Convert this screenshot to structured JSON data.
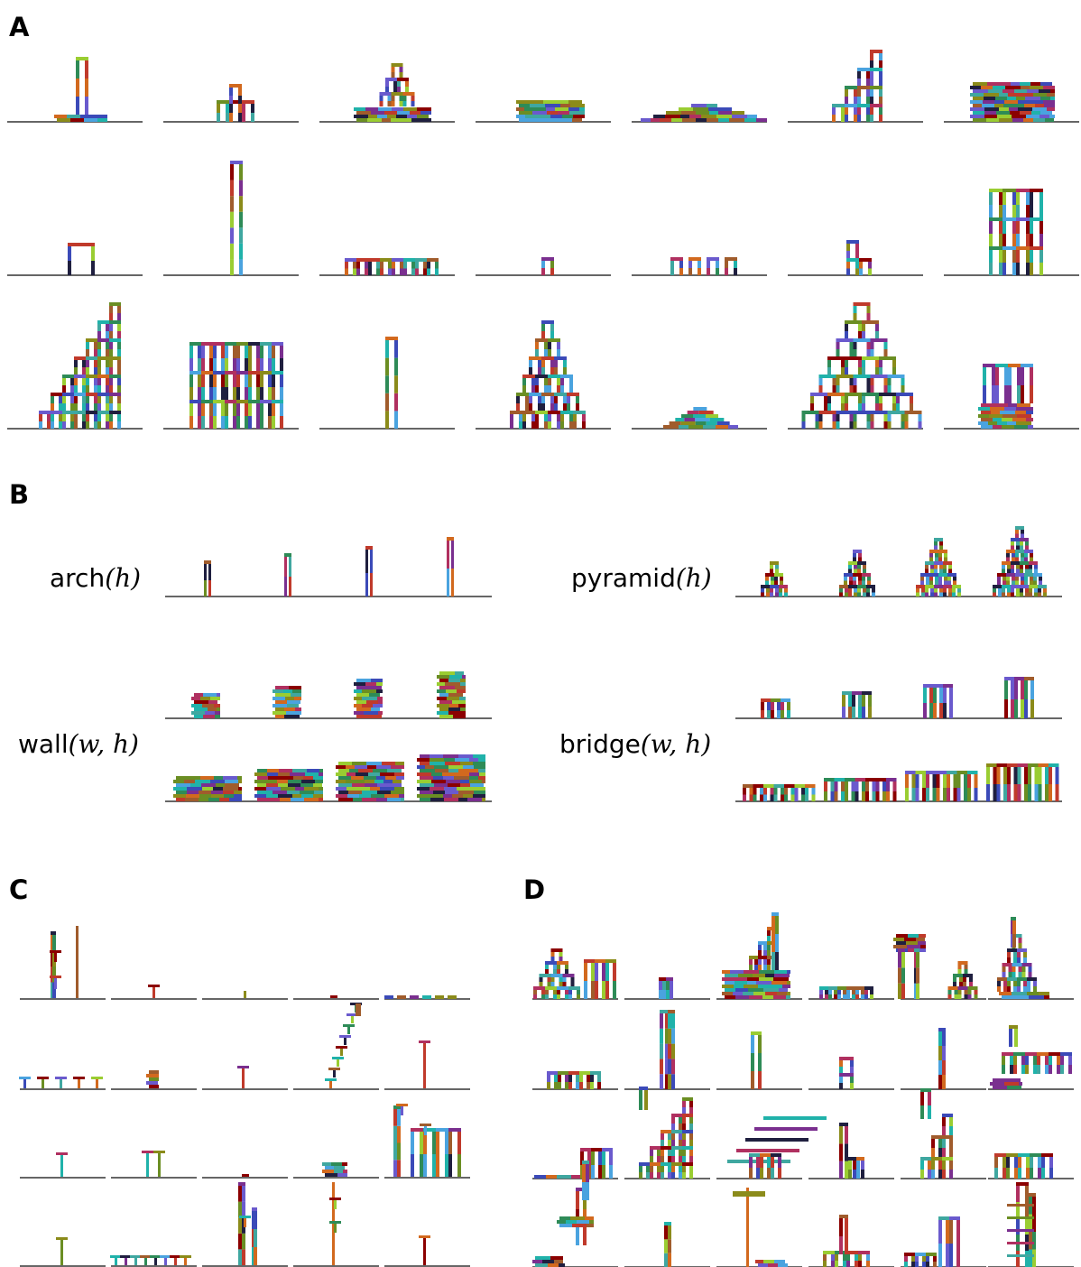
{
  "panels": {
    "a": {
      "letter": "A"
    },
    "b": {
      "letter": "B",
      "arch": {
        "name": "arch",
        "args": "(h)"
      },
      "pyramid": {
        "name": "pyramid",
        "args": "(h)"
      },
      "wall": {
        "name": "wall",
        "args": "(w, h)"
      },
      "bridge": {
        "name": "bridge",
        "args": "(w, h)"
      }
    },
    "c": {
      "letter": "C"
    },
    "d": {
      "letter": "D"
    }
  },
  "palette": [
    "#7a2f8f",
    "#2e8b57",
    "#b03060",
    "#3b4ab8",
    "#8b8b1a",
    "#3fa7a0",
    "#1f1f3f",
    "#c03a2b",
    "#6b8e23",
    "#a05c2c",
    "#4aa3df",
    "#9acd32",
    "#6a5acd",
    "#d2691e",
    "#20b2aa",
    "#8b0000"
  ],
  "ground_color": "#333333"
}
